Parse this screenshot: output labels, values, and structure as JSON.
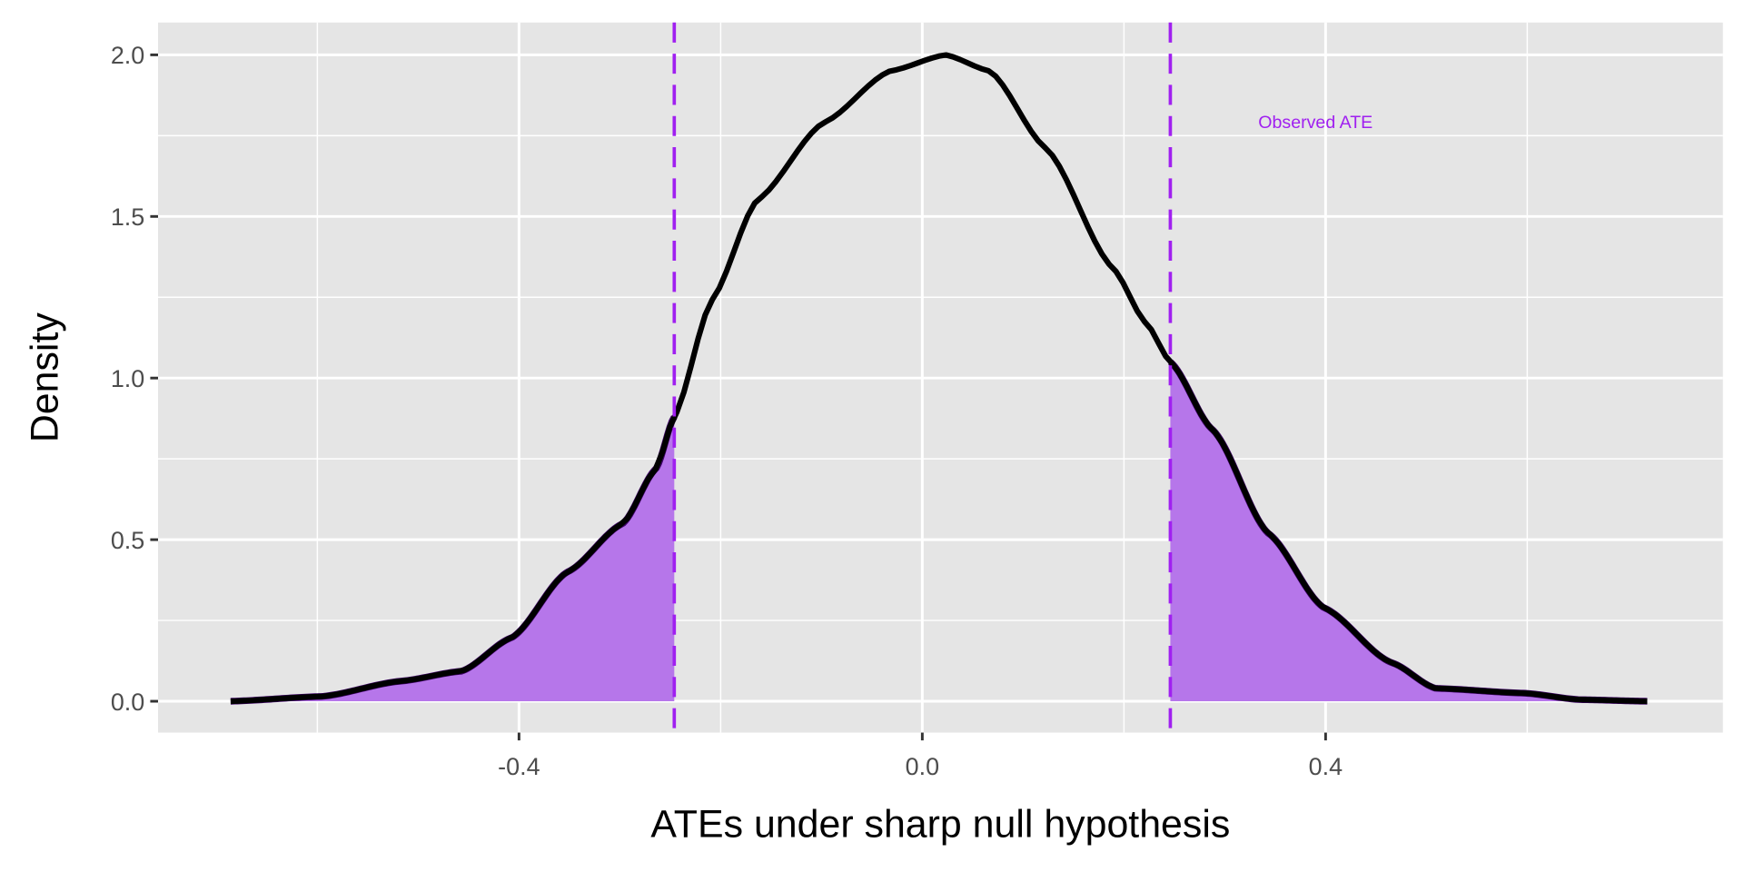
{
  "chart_data": {
    "type": "area",
    "title": "",
    "xlabel": "ATEs under sharp null hypothesis",
    "ylabel": "Density",
    "xlim": [
      -0.758,
      0.794
    ],
    "ylim": [
      -0.097,
      2.1
    ],
    "x_ticks": [
      -0.4,
      0.0,
      0.4
    ],
    "x_tick_labels": [
      "-0.4",
      "0.0",
      "0.4"
    ],
    "x_minor": [
      -0.6,
      -0.2,
      0.2,
      0.6
    ],
    "y_ticks": [
      0,
      0.5,
      1.0,
      1.5,
      2.0
    ],
    "y_tick_labels": [
      "0.0",
      "0.5",
      "1.0",
      "1.5",
      "2.0"
    ],
    "y_minor": [
      0.25,
      0.75,
      1.25,
      1.75
    ],
    "grid": true,
    "series": [
      {
        "name": "density",
        "x": [
          -0.686,
          -0.595,
          -0.518,
          -0.457,
          -0.407,
          -0.352,
          -0.297,
          -0.264,
          -0.246,
          -0.209,
          -0.164,
          -0.098,
          -0.032,
          0.023,
          0.067,
          0.123,
          0.189,
          0.222,
          0.246,
          0.288,
          0.343,
          0.398,
          0.465,
          0.509,
          0.597,
          0.652,
          0.719
        ],
        "y": [
          0.0,
          0.015,
          0.062,
          0.093,
          0.197,
          0.4,
          0.55,
          0.72,
          0.88,
          1.24,
          1.55,
          1.79,
          1.95,
          2.0,
          1.95,
          1.71,
          1.34,
          1.17,
          1.05,
          0.84,
          0.52,
          0.29,
          0.12,
          0.04,
          0.025,
          0.005,
          0.0
        ]
      }
    ],
    "observed_ate": 0.246,
    "observed_ate_neg": -0.246,
    "annotation": {
      "text": "Observed ATE",
      "x": 0.39,
      "y": 1.79
    },
    "colors": {
      "panel": "#E5E5E5",
      "grid": "#FFFFFF",
      "line": "#000000",
      "accent": "#A020F0",
      "fill": "#B676EA",
      "tail_line": "#3D0066"
    }
  }
}
